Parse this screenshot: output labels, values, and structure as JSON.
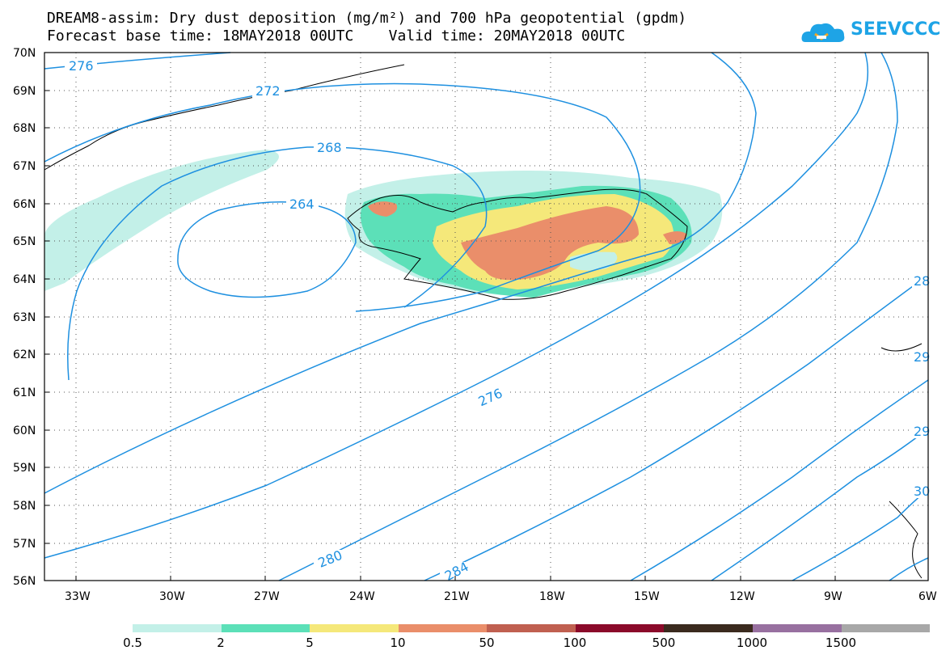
{
  "title": {
    "line1": "DREAM8-assim: Dry dust deposition (mg/m²) and 700 hPa geopotential (gpdm)",
    "line2": "Forecast base time: 18MAY2018 00UTC    Valid time: 20MAY2018 00UTC"
  },
  "logo": {
    "text": "SEEVCCC"
  },
  "map": {
    "lat_labels": [
      "70N",
      "69N",
      "68N",
      "67N",
      "66N",
      "65N",
      "64N",
      "63N",
      "62N",
      "61N",
      "60N",
      "59N",
      "58N",
      "57N",
      "56N"
    ],
    "lon_labels": [
      "33W",
      "30W",
      "27W",
      "24W",
      "21W",
      "18W",
      "15W",
      "12W",
      "9W",
      "6W"
    ],
    "contour_labels": [
      "276",
      "272",
      "268",
      "264",
      "276",
      "280",
      "284",
      "28",
      "29",
      "29",
      "30"
    ],
    "contour_color": "#1e90e0"
  },
  "legend": {
    "colors": [
      "#c3f0e8",
      "#5ce0b8",
      "#f5e87a",
      "#ea8e6a",
      "#c06050",
      "#8b0a2a",
      "#3b2a1e",
      "#9870a0",
      "#a8a8a8"
    ],
    "labels": [
      "0.5",
      "2",
      "5",
      "10",
      "50",
      "100",
      "500",
      "1000",
      "1500"
    ]
  }
}
